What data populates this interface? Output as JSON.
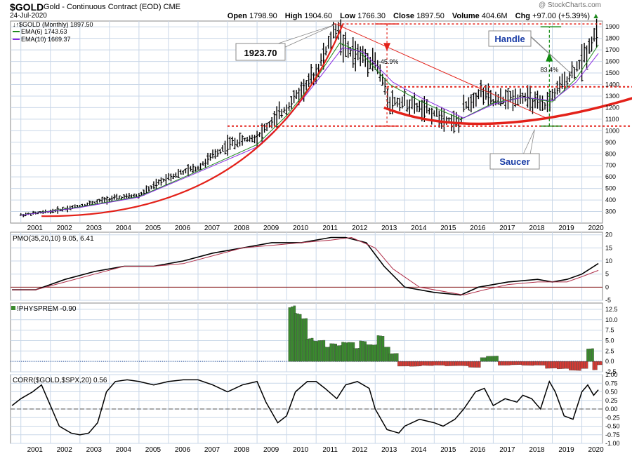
{
  "header": {
    "symbol": "$GOLD",
    "subtitle": "Gold - Continuous Contract (EOD)  CME",
    "date": "24-Jul-2020",
    "watermark": "@ StockCharts.com",
    "open_label": "Open",
    "open": "1798.90",
    "high_label": "High",
    "high": "1904.60",
    "low_label": "Low",
    "low": "1766.30",
    "close_label": "Close",
    "close": "1897.50",
    "volume_label": "Volume",
    "volume": "404.6M",
    "chg_label": "Chg",
    "chg": "+97.00 (+5.39%)",
    "chg_arrow": "▲"
  },
  "colors": {
    "price_bars": "#000000",
    "ema6": "#1f8a1f",
    "ema10": "#8a2be2",
    "annotation_red": "#e32119",
    "annotation_green": "#0f8a0f",
    "grid": "#c9d7e8",
    "hist_pos": "#3a8a2e",
    "hist_neg": "#d43a34",
    "label_box_text": "#1a3da6"
  },
  "chart_data": [
    {
      "panel": "price",
      "type": "bar",
      "series": [
        {
          "name": "$GOLD (Monthly) 1897.50",
          "x": [
            2001,
            2002,
            2003,
            2004,
            2005,
            2006,
            2007,
            2008,
            2009,
            2010,
            2011,
            2011.7,
            2012,
            2013,
            2013.5,
            2014,
            2015,
            2015.9,
            2016,
            2016.6,
            2017,
            2018,
            2018.7,
            2019,
            2019.5,
            2020,
            2020.56
          ],
          "values": [
            270,
            300,
            350,
            410,
            440,
            600,
            680,
            880,
            950,
            1200,
            1500,
            1900,
            1700,
            1600,
            1250,
            1250,
            1150,
            1060,
            1200,
            1350,
            1250,
            1300,
            1200,
            1300,
            1450,
            1600,
            1897
          ]
        },
        {
          "name": "EMA(6) 1743.63",
          "x": [
            2001,
            2003,
            2005,
            2007,
            2009,
            2010,
            2011,
            2011.8,
            2012.5,
            2013.5,
            2014.5,
            2015.9,
            2017,
            2018,
            2019,
            2019.8,
            2020.56
          ],
          "values": [
            270,
            340,
            430,
            650,
            880,
            1130,
            1450,
            1760,
            1680,
            1400,
            1260,
            1100,
            1240,
            1290,
            1250,
            1450,
            1744
          ]
        },
        {
          "name": "EMA(10) 1669.37",
          "x": [
            2001,
            2003,
            2005,
            2007,
            2009,
            2010,
            2011,
            2011.9,
            2012.6,
            2013.6,
            2014.6,
            2016,
            2017,
            2018,
            2019,
            2019.8,
            2020.56
          ],
          "values": [
            268,
            335,
            425,
            640,
            860,
            1100,
            1420,
            1720,
            1680,
            1420,
            1280,
            1110,
            1230,
            1290,
            1260,
            1420,
            1669
          ]
        }
      ],
      "ylim": [
        200,
        1950
      ],
      "y_ticks": [
        300,
        400,
        500,
        600,
        700,
        800,
        900,
        1000,
        1100,
        1200,
        1300,
        1400,
        1500,
        1600,
        1700,
        1800,
        1900
      ],
      "x_ticks": [
        "2001",
        "2002",
        "2003",
        "2004",
        "2005",
        "2006",
        "2007",
        "2008",
        "2009",
        "2010",
        "2011",
        "2012",
        "2013",
        "2014",
        "2015",
        "2016",
        "2017",
        "2018",
        "2019",
        "2020"
      ],
      "annotations": {
        "peak_label": "1923.70",
        "decline_label": "-45.9%",
        "rally_label": "83.4%",
        "handle_label": "Handle",
        "saucer_label": "Saucer",
        "resistance_levels": [
          1925,
          1380,
          1040
        ]
      }
    },
    {
      "panel": "pmo",
      "type": "line",
      "title": "PMO(35,20,10) 9.05, 6.41",
      "series": [
        {
          "name": "PMO",
          "x": [
            2000.7,
            2001.5,
            2002.5,
            2003.5,
            2004.5,
            2005.5,
            2006.5,
            2007.5,
            2008.5,
            2009.5,
            2010.5,
            2011.5,
            2012,
            2012.7,
            2013.3,
            2014,
            2015,
            2015.9,
            2016.5,
            2017.5,
            2018.5,
            2019,
            2019.5,
            2020,
            2020.56
          ],
          "values": [
            -1,
            -1,
            3,
            6,
            8,
            8,
            10,
            13,
            15,
            17,
            17,
            19,
            19,
            17,
            8,
            0,
            -2,
            -3,
            0,
            2,
            3,
            2,
            3,
            5,
            9.05
          ]
        },
        {
          "name": "Signal",
          "x": [
            2000.7,
            2001.5,
            2002.5,
            2003.5,
            2004.5,
            2005.5,
            2006.5,
            2007.5,
            2008.5,
            2009.5,
            2010.5,
            2011.5,
            2012.2,
            2013,
            2013.6,
            2014.5,
            2015.5,
            2016,
            2016.7,
            2017.5,
            2018.5,
            2019,
            2019.5,
            2020,
            2020.56
          ],
          "values": [
            -1,
            -1,
            2,
            5,
            8,
            8,
            9,
            12,
            15,
            16,
            17,
            18,
            19,
            15,
            7,
            0,
            -2,
            -3,
            -1,
            1,
            2,
            2,
            2,
            4,
            6.41
          ]
        }
      ],
      "ylim": [
        -5,
        21
      ],
      "y_ticks": [
        -5,
        0,
        5,
        10,
        15,
        20
      ]
    },
    {
      "panel": "physprem",
      "type": "bar",
      "title": "!PHYSPREM -0.90",
      "x": [
        2010.1,
        2010.3,
        2010.5,
        2010.7,
        2010.9,
        2011.1,
        2011.3,
        2011.5,
        2011.7,
        2011.9,
        2012.1,
        2012.3,
        2012.5,
        2012.7,
        2012.9,
        2013.1,
        2013.3,
        2013.5,
        2013.8,
        2014.2,
        2014.6,
        2015,
        2015.4,
        2015.8,
        2016.2,
        2016.6,
        2016.8,
        2017.2,
        2017.6,
        2018,
        2018.4,
        2018.8,
        2019.2,
        2019.6,
        2020,
        2020.2,
        2020.4,
        2020.56
      ],
      "values": [
        13.5,
        11,
        9,
        6,
        4.5,
        4.5,
        4,
        3.8,
        3.5,
        5,
        4,
        3,
        5,
        3.5,
        4,
        6,
        3,
        2,
        -1,
        -1.2,
        -1,
        -0.8,
        -1,
        -1.2,
        -1.3,
        0.8,
        1.2,
        -0.8,
        -0.8,
        -1,
        -0.8,
        -1.5,
        -2,
        -2,
        -1.5,
        3,
        -2,
        -0.9
      ],
      "ylim": [
        -2.5,
        14
      ],
      "y_ticks": [
        -2.5,
        0.0,
        2.5,
        5.0,
        7.5,
        10.0,
        12.5
      ]
    },
    {
      "panel": "corr",
      "type": "line",
      "title": "CORR($GOLD,$SPX,20) 0.56",
      "series": [
        {
          "name": "CORR",
          "x": [
            2000.7,
            2001,
            2001.4,
            2001.7,
            2002,
            2002.3,
            2002.7,
            2003,
            2003.3,
            2003.6,
            2003.9,
            2004.2,
            2004.6,
            2005,
            2005.5,
            2006,
            2006.5,
            2007,
            2007.5,
            2008,
            2008.5,
            2009,
            2009.3,
            2009.7,
            2010,
            2010.3,
            2010.7,
            2011,
            2011.3,
            2011.7,
            2012,
            2012.4,
            2012.8,
            2013,
            2013.4,
            2013.8,
            2014,
            2014.5,
            2015,
            2015.3,
            2015.7,
            2016,
            2016.4,
            2016.7,
            2017,
            2017.4,
            2017.8,
            2018,
            2018.3,
            2018.6,
            2018.9,
            2019.1,
            2019.4,
            2019.7,
            2020,
            2020.2,
            2020.4,
            2020.56
          ],
          "values": [
            0.1,
            0.3,
            0.5,
            0.7,
            0.1,
            -0.5,
            -0.7,
            -0.75,
            -0.7,
            -0.4,
            0.5,
            0.8,
            0.85,
            0.8,
            0.7,
            0.8,
            0.85,
            0.85,
            0.7,
            0.5,
            0.7,
            0.8,
            0.2,
            -0.4,
            -0.2,
            0.5,
            0.8,
            0.8,
            0.6,
            0.3,
            0.7,
            0.8,
            0.6,
            0.0,
            -0.6,
            -0.7,
            -0.5,
            -0.3,
            -0.4,
            -0.5,
            -0.3,
            0.0,
            0.5,
            0.6,
            0.1,
            0.3,
            0.2,
            0.4,
            0.3,
            0.0,
            0.8,
            0.5,
            -0.2,
            -0.3,
            0.5,
            0.7,
            0.4,
            0.56
          ]
        }
      ],
      "ylim": [
        -1.0,
        1.0
      ],
      "y_ticks": [
        -1.0,
        -0.75,
        -0.5,
        -0.25,
        0.0,
        0.25,
        0.5,
        0.75,
        1.0
      ]
    }
  ]
}
